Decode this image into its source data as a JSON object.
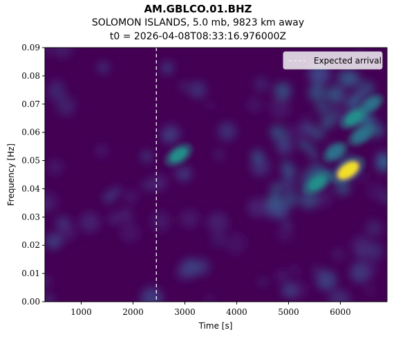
{
  "chart_data": {
    "type": "heatmap",
    "title": "AM.GBLCO.01.BHZ",
    "subtitle": "SOLOMON ISLANDS, 5.0 mb, 9823 km away",
    "subtitle2": "t0 = 2026-04-08T08:33:16.976000Z",
    "xlabel": "Time [s]",
    "ylabel": "Frequency [Hz]",
    "xlim": [
      300,
      6900
    ],
    "ylim": [
      0.0,
      0.09
    ],
    "xticks": [
      1000,
      2000,
      3000,
      4000,
      5000,
      6000
    ],
    "xtick_labels": [
      "1000",
      "2000",
      "3000",
      "4000",
      "5000",
      "6000"
    ],
    "yticks": [
      0.0,
      0.01,
      0.02,
      0.03,
      0.04,
      0.05,
      0.06,
      0.07,
      0.08,
      0.09
    ],
    "ytick_labels": [
      "0.00",
      "0.01",
      "0.02",
      "0.03",
      "0.04",
      "0.05",
      "0.06",
      "0.07",
      "0.08",
      "0.09"
    ],
    "colormap": "viridis",
    "expected_arrival": 2450,
    "legend": {
      "label": "Expected arrival",
      "position": "top-right"
    },
    "hotspots": [
      {
        "t": 2880,
        "f": 0.052,
        "intensity": 0.55
      },
      {
        "t": 6150,
        "f": 0.0465,
        "intensity": 0.95
      },
      {
        "t": 5550,
        "f": 0.042,
        "intensity": 0.6
      },
      {
        "t": 6250,
        "f": 0.065,
        "intensity": 0.5
      },
      {
        "t": 6400,
        "f": 0.059,
        "intensity": 0.45
      },
      {
        "t": 5900,
        "f": 0.053,
        "intensity": 0.35
      },
      {
        "t": 6600,
        "f": 0.07,
        "intensity": 0.3
      }
    ]
  },
  "colors": {
    "background_low": "#440154",
    "mid": "#21918c",
    "high": "#fde725",
    "arrival_line": "#ffffff"
  }
}
